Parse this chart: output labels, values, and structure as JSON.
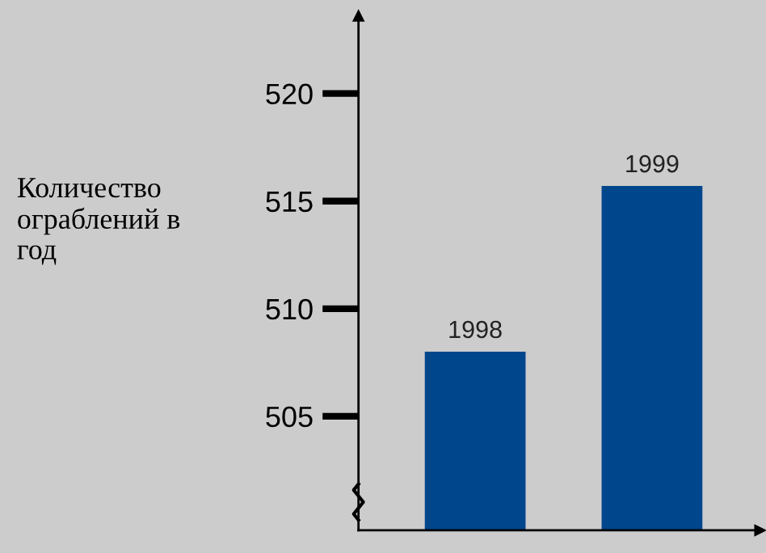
{
  "chart_data": {
    "type": "bar",
    "ylabel": "Количество\nограблений в\nгод",
    "categories": [
      "1998",
      "1999"
    ],
    "values": [
      508,
      515.7
    ],
    "color": "#00468c",
    "ylim": [
      499.7,
      523.6
    ],
    "yticks": [
      505,
      510,
      515,
      520
    ],
    "grid": false
  }
}
